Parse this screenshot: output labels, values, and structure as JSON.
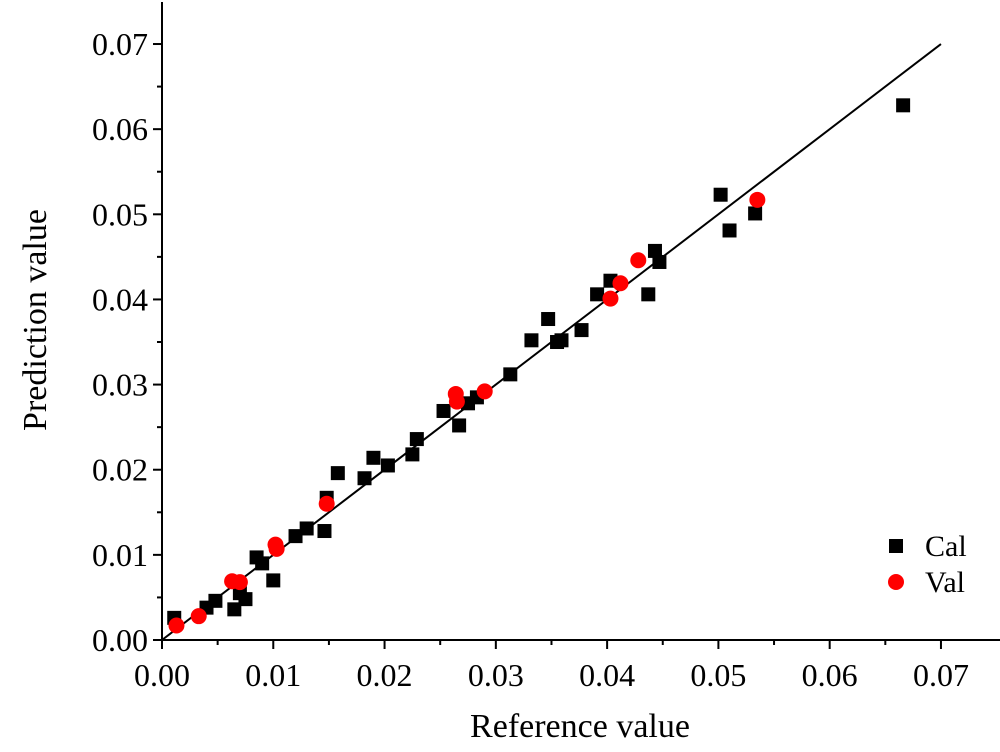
{
  "chart_data": {
    "type": "scatter",
    "title": "",
    "xlabel": "Reference value",
    "ylabel": "Prediction value",
    "xlim": [
      0,
      0.075
    ],
    "ylim": [
      0,
      0.075
    ],
    "xticks": [
      "0.00",
      "0.01",
      "0.02",
      "0.03",
      "0.04",
      "0.05",
      "0.06",
      "0.07"
    ],
    "yticks": [
      "0.00",
      "0.01",
      "0.02",
      "0.03",
      "0.04",
      "0.05",
      "0.06",
      "0.07"
    ],
    "grid": false,
    "legend_position": "bottom-right",
    "reference_line": {
      "x": [
        0,
        0.07
      ],
      "y": [
        0,
        0.07
      ],
      "color": "#000000"
    },
    "series": [
      {
        "name": "Cal",
        "marker": "square",
        "color": "#000000",
        "points": [
          [
            0.0011,
            0.0026
          ],
          [
            0.004,
            0.0038
          ],
          [
            0.0048,
            0.0046
          ],
          [
            0.0065,
            0.0036
          ],
          [
            0.007,
            0.0055
          ],
          [
            0.0075,
            0.0048
          ],
          [
            0.0085,
            0.0097
          ],
          [
            0.009,
            0.009
          ],
          [
            0.01,
            0.007
          ],
          [
            0.012,
            0.0122
          ],
          [
            0.013,
            0.0131
          ],
          [
            0.0146,
            0.0128
          ],
          [
            0.0148,
            0.0167
          ],
          [
            0.0158,
            0.0196
          ],
          [
            0.0182,
            0.019
          ],
          [
            0.019,
            0.0214
          ],
          [
            0.0203,
            0.0205
          ],
          [
            0.0225,
            0.0218
          ],
          [
            0.0229,
            0.0236
          ],
          [
            0.0253,
            0.0269
          ],
          [
            0.0267,
            0.0252
          ],
          [
            0.0275,
            0.0278
          ],
          [
            0.0283,
            0.0285
          ],
          [
            0.0313,
            0.0312
          ],
          [
            0.0332,
            0.0352
          ],
          [
            0.0347,
            0.0377
          ],
          [
            0.0355,
            0.035
          ],
          [
            0.0359,
            0.0352
          ],
          [
            0.0377,
            0.0364
          ],
          [
            0.0391,
            0.0406
          ],
          [
            0.0403,
            0.0422
          ],
          [
            0.0437,
            0.0406
          ],
          [
            0.0443,
            0.0457
          ],
          [
            0.0447,
            0.0444
          ],
          [
            0.0502,
            0.0523
          ],
          [
            0.051,
            0.0481
          ],
          [
            0.0533,
            0.0501
          ],
          [
            0.0666,
            0.0628
          ]
        ]
      },
      {
        "name": "Val",
        "marker": "circle",
        "color": "#ff0000",
        "points": [
          [
            0.0013,
            0.0017
          ],
          [
            0.0033,
            0.0028
          ],
          [
            0.0063,
            0.0069
          ],
          [
            0.007,
            0.0068
          ],
          [
            0.0102,
            0.0112
          ],
          [
            0.0103,
            0.0107
          ],
          [
            0.0148,
            0.016
          ],
          [
            0.0264,
            0.0289
          ],
          [
            0.0265,
            0.028
          ],
          [
            0.029,
            0.0292
          ],
          [
            0.0403,
            0.0401
          ],
          [
            0.0412,
            0.0419
          ],
          [
            0.0428,
            0.0446
          ],
          [
            0.0535,
            0.0517
          ]
        ]
      }
    ]
  }
}
